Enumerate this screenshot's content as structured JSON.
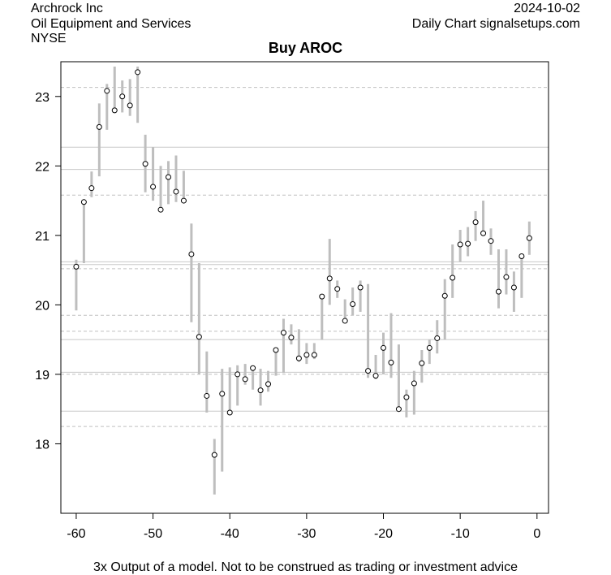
{
  "header": {
    "company": "Archrock Inc",
    "sector": "Oil Equipment and Services",
    "exchange": "NYSE",
    "date": "2024-10-02",
    "source": "Daily Chart signalsetups.com"
  },
  "footer": "3x  Output of a model. Not to be construed as trading or investment advice",
  "chart_data": {
    "type": "line",
    "title": "Buy AROC",
    "xlabel": "",
    "ylabel": "",
    "xlim": [
      -62,
      1.5
    ],
    "ylim": [
      17.0,
      23.5
    ],
    "x_ticks": [
      -60,
      -50,
      -40,
      -30,
      -20,
      -10,
      0
    ],
    "y_ticks": [
      18,
      19,
      20,
      21,
      22,
      23
    ],
    "grid": false,
    "bar_color": "#bebebe",
    "marker_fill": "#ffffff",
    "solid_lines": [
      22.27,
      21.95,
      20.62,
      20.58,
      19.5,
      19.03,
      18.47
    ],
    "dashed_lines": [
      23.13,
      21.58,
      20.52,
      19.85,
      19.62,
      19.0,
      18.25
    ],
    "x": [
      -60,
      -59,
      -58,
      -57,
      -56,
      -55,
      -54,
      -53,
      -52,
      -51,
      -50,
      -49,
      -48,
      -47,
      -46,
      -45,
      -44,
      -43,
      -42,
      -41,
      -40,
      -39,
      -38,
      -37,
      -36,
      -35,
      -34,
      -33,
      -32,
      -31,
      -30,
      -29,
      -28,
      -27,
      -26,
      -25,
      -24,
      -23,
      -22,
      -21,
      -20,
      -19,
      -18,
      -17,
      -16,
      -15,
      -14,
      -13,
      -12,
      -11,
      -10,
      -9,
      -8,
      -7,
      -6,
      -5,
      -4,
      -3,
      -2,
      -1
    ],
    "close": [
      20.55,
      21.48,
      21.68,
      22.56,
      23.08,
      22.8,
      23.0,
      22.87,
      23.35,
      22.03,
      21.7,
      21.37,
      21.84,
      21.63,
      21.5,
      20.73,
      19.54,
      18.69,
      17.84,
      18.72,
      18.45,
      19.0,
      18.93,
      19.09,
      18.77,
      18.86,
      19.35,
      19.6,
      19.53,
      19.23,
      19.28,
      19.28,
      20.12,
      20.38,
      20.23,
      19.77,
      20.01,
      20.25,
      19.05,
      18.98,
      19.38,
      19.17,
      18.5,
      18.67,
      18.87,
      19.16,
      19.38,
      19.52,
      20.13,
      20.39,
      20.87,
      20.88,
      21.19,
      21.03,
      20.92,
      20.19,
      20.4,
      20.25,
      20.7,
      20.96
    ],
    "high": [
      20.65,
      21.52,
      21.92,
      22.9,
      23.18,
      23.43,
      23.23,
      23.25,
      23.43,
      22.45,
      22.27,
      22.0,
      22.07,
      22.15,
      21.93,
      21.17,
      20.6,
      19.33,
      18.07,
      19.08,
      19.1,
      19.13,
      19.15,
      19.12,
      19.08,
      19.05,
      19.38,
      19.8,
      19.72,
      19.65,
      19.45,
      19.45,
      20.1,
      20.95,
      20.35,
      20.08,
      20.25,
      20.35,
      20.3,
      19.28,
      19.6,
      19.88,
      19.43,
      18.78,
      19.05,
      19.35,
      19.5,
      19.78,
      20.37,
      20.87,
      21.08,
      21.12,
      21.35,
      21.5,
      21.1,
      20.8,
      20.8,
      20.48,
      20.72,
      21.2
    ],
    "low": [
      19.92,
      20.6,
      21.55,
      21.85,
      22.52,
      22.78,
      22.77,
      22.72,
      22.62,
      21.62,
      21.5,
      21.4,
      21.45,
      21.48,
      21.47,
      19.75,
      19.0,
      18.45,
      17.27,
      17.6,
      18.45,
      18.55,
      18.85,
      18.78,
      18.55,
      18.75,
      18.98,
      19.02,
      19.43,
      19.18,
      19.15,
      19.22,
      19.5,
      20.0,
      20.1,
      19.75,
      19.85,
      19.9,
      18.95,
      18.93,
      19.0,
      18.95,
      18.47,
      18.38,
      18.42,
      18.88,
      19.15,
      19.3,
      19.5,
      20.1,
      20.62,
      20.7,
      20.92,
      21.02,
      20.72,
      19.95,
      20.15,
      19.9,
      20.1,
      20.72
    ]
  }
}
